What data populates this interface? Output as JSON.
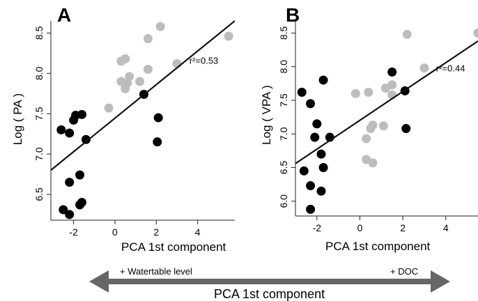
{
  "chart_data": [
    {
      "panel": "A",
      "type": "scatter",
      "xlabel": "PCA 1st component",
      "ylabel": "Log ( PA )",
      "xlim": [
        -3.1,
        5.8
      ],
      "ylim": [
        6.18,
        8.65
      ],
      "xticks": [
        -2,
        0,
        2,
        4
      ],
      "yticks": [
        6.5,
        7.0,
        7.5,
        8.0,
        8.5
      ],
      "xtick_labels": [
        "-2",
        "0",
        "2",
        "4"
      ],
      "ytick_labels": [
        "6.5",
        "7.0",
        "7.5",
        "8.0",
        "8.5"
      ],
      "annotation": "r²=0.53",
      "annotation_pos": [
        3.6,
        8.12
      ],
      "trend_line": {
        "x": [
          -3.1,
          5.8
        ],
        "y": [
          6.8,
          8.65
        ]
      },
      "series": [
        {
          "color": "#000000",
          "points": [
            [
              -2.6,
              7.3
            ],
            [
              -2.2,
              7.26
            ],
            [
              -2.0,
              7.42
            ],
            [
              -1.9,
              7.48
            ],
            [
              -1.6,
              7.49
            ],
            [
              -1.4,
              7.18
            ],
            [
              -1.7,
              6.74
            ],
            [
              -2.2,
              6.65
            ],
            [
              -1.7,
              6.37
            ],
            [
              -1.6,
              6.4
            ],
            [
              -2.5,
              6.31
            ],
            [
              -2.2,
              6.25
            ],
            [
              1.4,
              7.74
            ],
            [
              2.1,
              7.45
            ],
            [
              2.05,
              7.15
            ]
          ]
        },
        {
          "color": "#bdbdbd",
          "points": [
            [
              -0.3,
              7.57
            ],
            [
              0.3,
              8.15
            ],
            [
              0.5,
              8.18
            ],
            [
              0.3,
              7.9
            ],
            [
              0.6,
              7.88
            ],
            [
              0.7,
              7.96
            ],
            [
              0.5,
              7.81
            ],
            [
              1.2,
              7.9
            ],
            [
              1.6,
              8.43
            ],
            [
              1.6,
              8.05
            ],
            [
              2.2,
              8.58
            ],
            [
              3.0,
              8.12
            ],
            [
              5.5,
              8.46
            ]
          ]
        }
      ]
    },
    {
      "panel": "B",
      "type": "scatter",
      "xlabel": "PCA 1st component",
      "ylabel": "Log ( VPA )",
      "xlim": [
        -3.0,
        5.5
      ],
      "ylim": [
        5.78,
        8.68
      ],
      "xticks": [
        -2,
        0,
        2,
        4
      ],
      "yticks": [
        6.0,
        6.5,
        7.0,
        7.5,
        8.0,
        8.5
      ],
      "xtick_labels": [
        "-2",
        "0",
        "2",
        "4"
      ],
      "ytick_labels": [
        "6.0",
        "6.5",
        "7.0",
        "7.5",
        "8.0",
        "8.5"
      ],
      "annotation": "r²=0.44",
      "annotation_pos": [
        3.55,
        7.93
      ],
      "trend_line": {
        "x": [
          -3.0,
          5.5
        ],
        "y": [
          6.56,
          8.38
        ]
      },
      "series": [
        {
          "color": "#000000",
          "points": [
            [
              -2.7,
              7.62
            ],
            [
              -2.3,
              7.45
            ],
            [
              -1.7,
              7.8
            ],
            [
              -2.0,
              7.15
            ],
            [
              -2.1,
              6.95
            ],
            [
              -1.4,
              6.95
            ],
            [
              -1.8,
              6.7
            ],
            [
              -2.6,
              6.45
            ],
            [
              -1.7,
              6.5
            ],
            [
              -2.3,
              6.23
            ],
            [
              -1.8,
              6.15
            ],
            [
              -2.3,
              5.88
            ],
            [
              1.5,
              7.92
            ],
            [
              2.1,
              7.64
            ],
            [
              2.15,
              7.08
            ]
          ]
        },
        {
          "color": "#bdbdbd",
          "points": [
            [
              -0.2,
              7.6
            ],
            [
              0.4,
              7.62
            ],
            [
              1.2,
              7.68
            ],
            [
              1.5,
              7.73
            ],
            [
              1.5,
              7.58
            ],
            [
              2.2,
              8.48
            ],
            [
              3.0,
              7.98
            ],
            [
              5.5,
              8.5
            ],
            [
              0.6,
              7.13
            ],
            [
              0.5,
              7.08
            ],
            [
              1.1,
              7.12
            ],
            [
              0.3,
              6.93
            ],
            [
              0.3,
              6.62
            ],
            [
              0.6,
              6.57
            ]
          ]
        }
      ]
    }
  ],
  "bottom_arrow": {
    "left_label": "+ Watertable level",
    "right_label": "+ DOC",
    "title": "PCA 1st component",
    "color": "#666666"
  }
}
